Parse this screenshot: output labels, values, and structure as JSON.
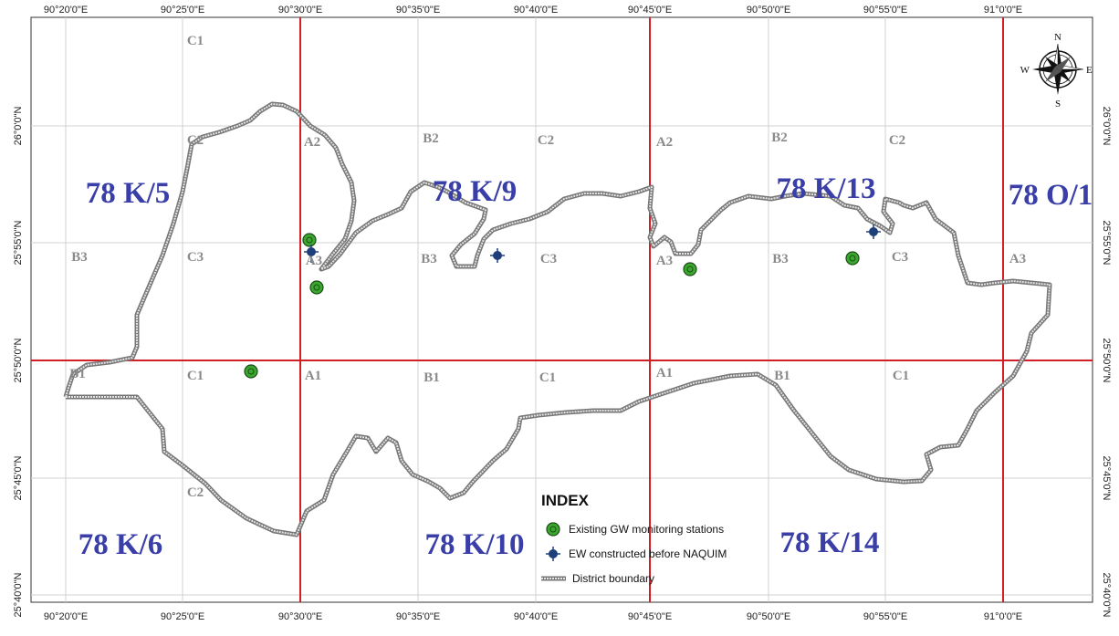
{
  "top_ticks": [
    "90°20'0\"E",
    "90°25'0\"E",
    "90°30'0\"E",
    "90°35'0\"E",
    "90°40'0\"E",
    "90°45'0\"E",
    "90°50'0\"E",
    "90°55'0\"E",
    "91°0'0\"E"
  ],
  "bottom_ticks": [
    "90°20'0\"E",
    "90°25'0\"E",
    "90°30'0\"E",
    "90°35'0\"E",
    "90°40'0\"E",
    "90°45'0\"E",
    "90°50'0\"E",
    "90°55'0\"E",
    "91°0'0\"E"
  ],
  "left_ticks": [
    "26°0'0\"N",
    "25°55'0\"N",
    "25°50'0\"N",
    "25°45'0\"N",
    "25°40'0\"N"
  ],
  "right_ticks": [
    "26°0'0\"N",
    "25°55'0\"N",
    "25°50'0\"N",
    "25°45'0\"N",
    "25°40'0\"N"
  ],
  "sheet_labels": [
    "78 K/5",
    "78 K/9",
    "78 K/13",
    "78 O/1",
    "78 K/6",
    "78 K/10",
    "78 K/14"
  ],
  "cell_labels": [
    "C1",
    "C2",
    "A2",
    "B2",
    "C2",
    "A2",
    "B2",
    "C2",
    "B3",
    "C3",
    "A3",
    "B3",
    "C3",
    "A3",
    "B3",
    "C3",
    "A3",
    "B1",
    "C1",
    "A1",
    "B1",
    "C1",
    "A1",
    "B1",
    "C1",
    "C2"
  ],
  "compass": {
    "n": "N",
    "s": "S",
    "e": "E",
    "w": "W",
    "icon": "north-arrow-compass-icon"
  },
  "legend": {
    "title": "INDEX",
    "items": [
      {
        "label": "Existing GW monitoring stations",
        "icon": "gw-station-icon",
        "color": "#3aa82e"
      },
      {
        "label": "EW constructed before NAQUIM",
        "icon": "ew-well-icon",
        "color": "#1f3f7a"
      },
      {
        "label": "District boundary",
        "icon": "boundary-line-icon",
        "color": "#8a8a8a"
      }
    ]
  },
  "colors": {
    "grid_red": "#d21f26",
    "grid_gray": "#d0d0d0",
    "sheet_label": "#3a3fa8",
    "cell_label": "#8a8a8a"
  }
}
